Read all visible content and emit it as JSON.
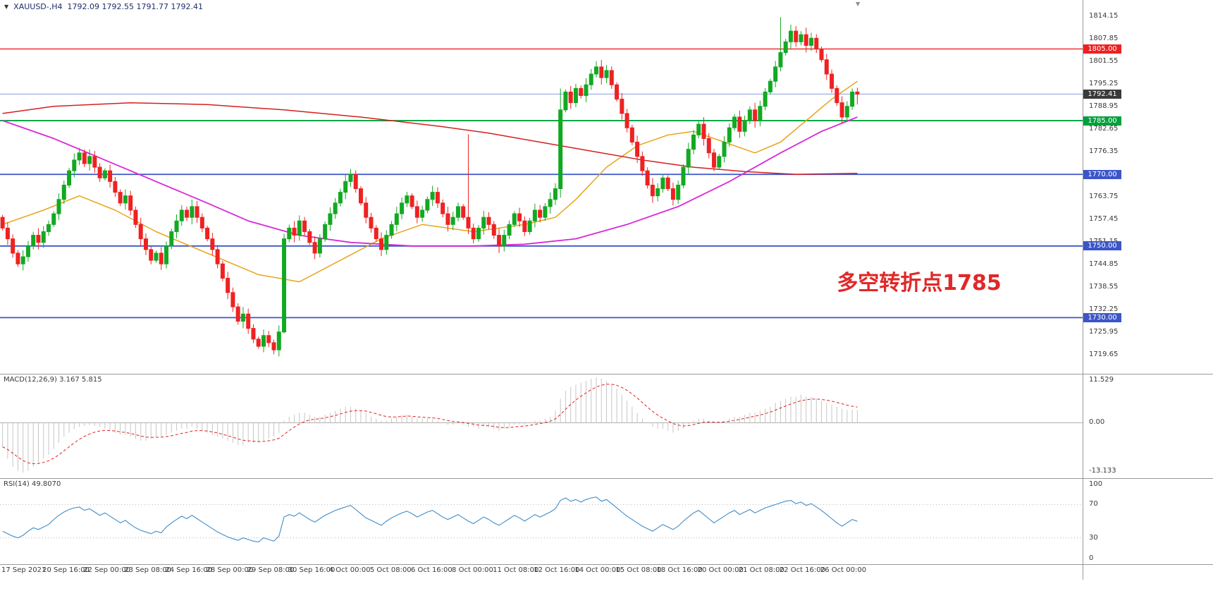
{
  "header": {
    "symbol": "XAUUSD-,H4",
    "ohlc": "1792.09 1792.55 1791.77 1792.41"
  },
  "colors": {
    "bull": "#12a922",
    "bear": "#ee2222",
    "macd_hist": "#c6c6c6",
    "macd_signal": "#e02020",
    "rsi_line": "#3f8cc8",
    "annotation": "#e02828",
    "axis_text": "#3a3a3a",
    "header_text": "#1c2d6b",
    "separator": "#999999"
  },
  "chart_data": {
    "type": "candlestick",
    "symbol": "XAUUSD-",
    "timeframe": "H4",
    "quote": {
      "open": 1792.09,
      "high": 1792.55,
      "low": 1791.77,
      "close": 1792.41
    },
    "annotation": {
      "text": "多空转折点1785",
      "anchor_price": 1740,
      "anchor_index": 163
    },
    "price_axis": {
      "min": 1715.5,
      "max": 1817.5,
      "ticks": [
        1814.15,
        1807.85,
        1801.55,
        1795.25,
        1788.95,
        1782.65,
        1776.35,
        1770.05,
        1763.75,
        1757.45,
        1751.15,
        1744.85,
        1738.55,
        1732.25,
        1725.95,
        1719.65
      ]
    },
    "hlines": [
      {
        "price": 1805.0,
        "label": "1805.00",
        "color": "#ee2020",
        "badge": "#ee2020",
        "width": 1.4
      },
      {
        "price": 1792.41,
        "label": "1792.41",
        "color": "#8a9cd8",
        "badge": "#3a3a3a",
        "width": 1
      },
      {
        "price": 1785.0,
        "label": "1785.00",
        "color": "#00a03c",
        "badge": "#00a03c",
        "width": 1.8
      },
      {
        "price": 1770.0,
        "label": "1770.00",
        "color": "#3c55c8",
        "badge": "#3c55c8",
        "width": 1.8
      },
      {
        "price": 1750.0,
        "label": "1750.00",
        "color": "#3c55c8",
        "badge": "#3c55c8",
        "width": 1.8
      },
      {
        "price": 1730.0,
        "label": "1730.00",
        "color": "#3c55c8",
        "badge": "#3c55c8",
        "width": 1.8
      }
    ],
    "candles": {
      "first_open": 1758,
      "closes": [
        1755,
        1752,
        1748,
        1745,
        1747,
        1750,
        1753,
        1751,
        1754,
        1756,
        1759,
        1763,
        1767,
        1771,
        1774,
        1776,
        1773,
        1775,
        1772,
        1769,
        1771,
        1768,
        1765,
        1762,
        1764,
        1760,
        1756,
        1752,
        1749,
        1746,
        1748,
        1745,
        1750,
        1754,
        1757,
        1760,
        1758,
        1761,
        1758,
        1755,
        1752,
        1749,
        1745,
        1741,
        1737,
        1733,
        1729,
        1731,
        1727,
        1724,
        1722,
        1725,
        1723,
        1721,
        1726,
        1752,
        1755,
        1753,
        1757,
        1754,
        1751,
        1748,
        1752,
        1756,
        1759,
        1762,
        1765,
        1768,
        1770,
        1766,
        1762,
        1758,
        1755,
        1752,
        1749,
        1753,
        1756,
        1759,
        1762,
        1764,
        1761,
        1758,
        1760,
        1763,
        1765,
        1762,
        1759,
        1756,
        1758,
        1761,
        1758,
        1755,
        1752,
        1755,
        1758,
        1756,
        1753,
        1750,
        1753,
        1756,
        1759,
        1757,
        1754,
        1757,
        1760,
        1758,
        1761,
        1763,
        1766,
        1788,
        1793,
        1790,
        1794,
        1792,
        1795,
        1798,
        1800,
        1797,
        1799,
        1795,
        1791,
        1787,
        1783,
        1779,
        1775,
        1771,
        1767,
        1764,
        1766,
        1769,
        1766,
        1763,
        1767,
        1772,
        1777,
        1781,
        1784,
        1780,
        1776,
        1772,
        1775,
        1779,
        1783,
        1786,
        1782,
        1785,
        1788,
        1785,
        1789,
        1793,
        1796,
        1800,
        1804,
        1807,
        1810,
        1807,
        1809,
        1806,
        1808,
        1805,
        1802,
        1798,
        1794,
        1790,
        1786,
        1789,
        1793,
        1792.4
      ],
      "wick_overrides": {
        "53": {
          "low": 1719.8
        },
        "55": {
          "low": 1725.6
        },
        "91": {
          "high": 1781.2
        },
        "109": {
          "high": 1794,
          "low": 1763.5
        },
        "116": {
          "high": 1801.6
        },
        "152": {
          "high": 1813.9
        },
        "167": {
          "high": 1794.2,
          "low": 1789.5
        }
      }
    },
    "moving_averages": [
      {
        "name": "ma-fast-orange",
        "color": "#e8a41c",
        "width": 1.5,
        "points": [
          [
            0,
            1756
          ],
          [
            8,
            1760
          ],
          [
            15,
            1764
          ],
          [
            22,
            1760
          ],
          [
            30,
            1754
          ],
          [
            40,
            1748
          ],
          [
            50,
            1742
          ],
          [
            58,
            1740
          ],
          [
            66,
            1746
          ],
          [
            74,
            1752
          ],
          [
            82,
            1756
          ],
          [
            92,
            1754
          ],
          [
            102,
            1756
          ],
          [
            108,
            1758
          ],
          [
            112,
            1763
          ],
          [
            118,
            1772
          ],
          [
            124,
            1778
          ],
          [
            130,
            1781
          ],
          [
            135,
            1782
          ],
          [
            141,
            1779
          ],
          [
            147,
            1776
          ],
          [
            152,
            1779
          ],
          [
            157,
            1785
          ],
          [
            162,
            1791
          ],
          [
            167,
            1796
          ]
        ]
      },
      {
        "name": "ma-mid-magenta",
        "color": "#d828d8",
        "width": 1.8,
        "points": [
          [
            0,
            1785
          ],
          [
            10,
            1780
          ],
          [
            20,
            1774
          ],
          [
            30,
            1768
          ],
          [
            40,
            1762
          ],
          [
            48,
            1757
          ],
          [
            58,
            1753
          ],
          [
            68,
            1751
          ],
          [
            80,
            1750
          ],
          [
            92,
            1750
          ],
          [
            102,
            1750.5
          ],
          [
            112,
            1752
          ],
          [
            122,
            1756
          ],
          [
            132,
            1761
          ],
          [
            142,
            1768
          ],
          [
            152,
            1776
          ],
          [
            160,
            1782
          ],
          [
            167,
            1786
          ]
        ]
      },
      {
        "name": "ma-slow-red",
        "color": "#d42020",
        "width": 1.5,
        "points": [
          [
            0,
            1787
          ],
          [
            10,
            1789
          ],
          [
            25,
            1790
          ],
          [
            40,
            1789.5
          ],
          [
            55,
            1788
          ],
          [
            70,
            1786
          ],
          [
            85,
            1783.5
          ],
          [
            95,
            1781.5
          ],
          [
            105,
            1779
          ],
          [
            115,
            1776.5
          ],
          [
            125,
            1774
          ],
          [
            135,
            1772
          ],
          [
            145,
            1770.8
          ],
          [
            155,
            1770
          ],
          [
            167,
            1770.3
          ]
        ]
      }
    ],
    "macd": {
      "label": "MACD(12,26,9) 3.167 5.815",
      "title": "MACD(12,26,9)",
      "value_main": 3.167,
      "value_signal": 5.815,
      "max": 11.529,
      "min": -13.133,
      "axis_ticks": [
        "11.529",
        "0.00",
        "-13.133"
      ],
      "histogram": [
        -6,
        -9,
        -11,
        -12,
        -12.5,
        -12,
        -11,
        -10,
        -9,
        -8,
        -6.5,
        -5,
        -3.5,
        -2.5,
        -1.5,
        -1,
        -0.8,
        -0.6,
        -0.8,
        -1,
        -1.5,
        -2,
        -2.5,
        -3,
        -3,
        -3.5,
        -4,
        -4.5,
        -4.5,
        -4,
        -3.5,
        -3.5,
        -3,
        -2.5,
        -2,
        -1.5,
        -1.5,
        -1,
        -1.5,
        -2,
        -2.5,
        -3,
        -3.5,
        -4,
        -4.5,
        -5,
        -5.5,
        -5.5,
        -5,
        -5,
        -5,
        -4.5,
        -4,
        -3.5,
        -2.5,
        0.5,
        1.5,
        2,
        2.5,
        2.5,
        2,
        1.5,
        1.5,
        2,
        2.5,
        3,
        3.5,
        4,
        4,
        3.5,
        3,
        2.5,
        1.5,
        1,
        0.5,
        0.5,
        1,
        1.5,
        2,
        2,
        1.5,
        1,
        1,
        1,
        1,
        0.5,
        0,
        -0.5,
        -0.5,
        0,
        -0.5,
        -1,
        -1,
        -1.5,
        -1,
        -1,
        -1.5,
        -2,
        -1.5,
        -1,
        -0.5,
        -0.5,
        -0.5,
        0,
        0.5,
        0.5,
        1,
        1.5,
        3,
        6,
        8,
        9,
        9.5,
        10,
        10.5,
        11,
        11.3,
        11,
        10.5,
        9.5,
        8.5,
        7,
        5.5,
        4,
        2.5,
        1,
        0,
        -1,
        -1.5,
        -1.5,
        -2,
        -2.5,
        -2,
        -1.5,
        -0.5,
        0.5,
        1,
        1,
        0.5,
        0,
        0,
        0.5,
        1,
        1.5,
        1.5,
        2,
        2.5,
        2.5,
        3,
        3.5,
        4,
        5,
        5.5,
        6,
        6.5,
        6.5,
        7,
        6.5,
        6.5,
        6,
        5.5,
        5,
        4.5,
        4,
        3.5,
        3.2,
        3.2,
        3.167
      ]
    },
    "rsi": {
      "label": "RSI(14) 49.8070",
      "title": "RSI(14)",
      "value": 49.807,
      "levels": [
        100,
        70,
        30,
        0
      ],
      "values": [
        38,
        35,
        32,
        30,
        33,
        38,
        42,
        40,
        43,
        46,
        52,
        57,
        61,
        64,
        66,
        67,
        63,
        65,
        61,
        57,
        60,
        56,
        52,
        48,
        51,
        46,
        42,
        39,
        37,
        35,
        38,
        36,
        43,
        48,
        52,
        56,
        53,
        57,
        53,
        49,
        45,
        41,
        37,
        34,
        31,
        29,
        27,
        30,
        28,
        26,
        25,
        30,
        28,
        26,
        32,
        55,
        58,
        56,
        60,
        56,
        52,
        49,
        53,
        57,
        60,
        63,
        65,
        67,
        69,
        64,
        59,
        54,
        51,
        48,
        45,
        50,
        54,
        57,
        60,
        62,
        59,
        55,
        58,
        61,
        63,
        59,
        55,
        52,
        55,
        58,
        54,
        50,
        47,
        51,
        55,
        52,
        48,
        45,
        49,
        53,
        57,
        54,
        50,
        54,
        58,
        55,
        58,
        61,
        65,
        75,
        78,
        74,
        76,
        73,
        76,
        78,
        79,
        74,
        76,
        71,
        66,
        61,
        56,
        52,
        48,
        44,
        41,
        38,
        42,
        46,
        43,
        40,
        44,
        50,
        55,
        60,
        63,
        58,
        53,
        48,
        52,
        56,
        60,
        63,
        58,
        61,
        64,
        60,
        63,
        66,
        68,
        70,
        72,
        74,
        75,
        71,
        73,
        69,
        71,
        67,
        63,
        58,
        53,
        48,
        44,
        48,
        52,
        49.8
      ]
    },
    "time_labels": [
      "17 Sep 2021",
      "20 Sep 16:00",
      "22 Sep 00:00",
      "23 Sep 08:00",
      "24 Sep 16:00",
      "28 Sep 00:00",
      "29 Sep 08:00",
      "30 Sep 16:00",
      "4 Oct 00:00",
      "5 Oct 08:00",
      "6 Oct 16:00",
      "8 Oct 00:00",
      "11 Oct 08:00",
      "12 Oct 16:00",
      "14 Oct 00:00",
      "15 Oct 08:00",
      "18 Oct 16:00",
      "20 Oct 00:00",
      "21 Oct 08:00",
      "22 Oct 16:00",
      "26 Oct 00:00"
    ]
  }
}
